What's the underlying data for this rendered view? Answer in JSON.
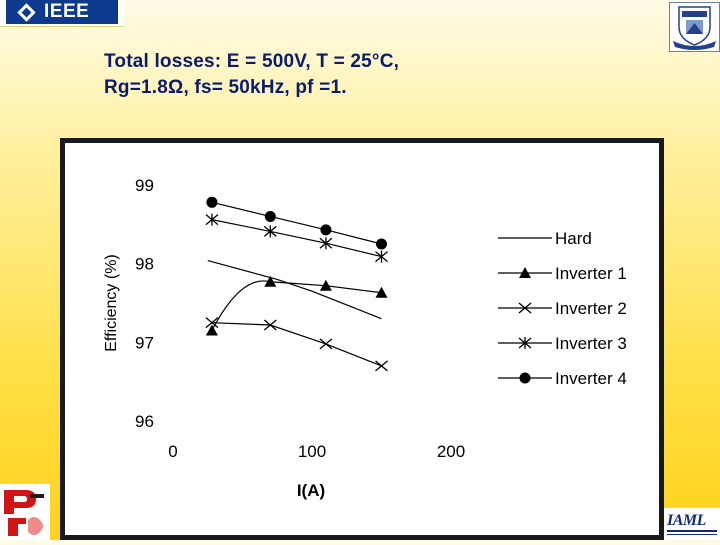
{
  "title": {
    "line1": "Total losses: E = 500V, T = 25°C,",
    "line2": "Rg=1.8Ω, fs= 50kHz, pf =1."
  },
  "logos": {
    "ieee": "IEEE",
    "iaml": "IAML"
  },
  "chart_data": {
    "type": "line",
    "title": "",
    "xlabel": "I(A)",
    "ylabel": "Efficiency (%)",
    "xlim": [
      0,
      200
    ],
    "ylim": [
      96,
      99
    ],
    "xticks": [
      0,
      100,
      200
    ],
    "yticks": [
      96,
      97,
      98,
      99
    ],
    "grid": false,
    "legend_position": "right",
    "series": [
      {
        "name": "Hard",
        "marker": "none",
        "x": [
          25,
          75,
          100,
          150
        ],
        "y": [
          98.04,
          97.8,
          97.65,
          97.3
        ]
      },
      {
        "name": "Inverter 1",
        "marker": "triangle",
        "x": [
          28,
          70,
          110,
          150
        ],
        "y": [
          97.15,
          97.77,
          97.72,
          97.63
        ]
      },
      {
        "name": "Inverter 2",
        "marker": "x",
        "x": [
          28,
          70,
          110,
          150
        ],
        "y": [
          97.25,
          97.22,
          96.98,
          96.7
        ]
      },
      {
        "name": "Inverter 3",
        "marker": "asterisk",
        "x": [
          28,
          70,
          110,
          150
        ],
        "y": [
          98.56,
          98.41,
          98.26,
          98.09
        ]
      },
      {
        "name": "Inverter 4",
        "marker": "circle",
        "x": [
          28,
          70,
          110,
          150
        ],
        "y": [
          98.78,
          98.6,
          98.43,
          98.25
        ]
      }
    ]
  }
}
